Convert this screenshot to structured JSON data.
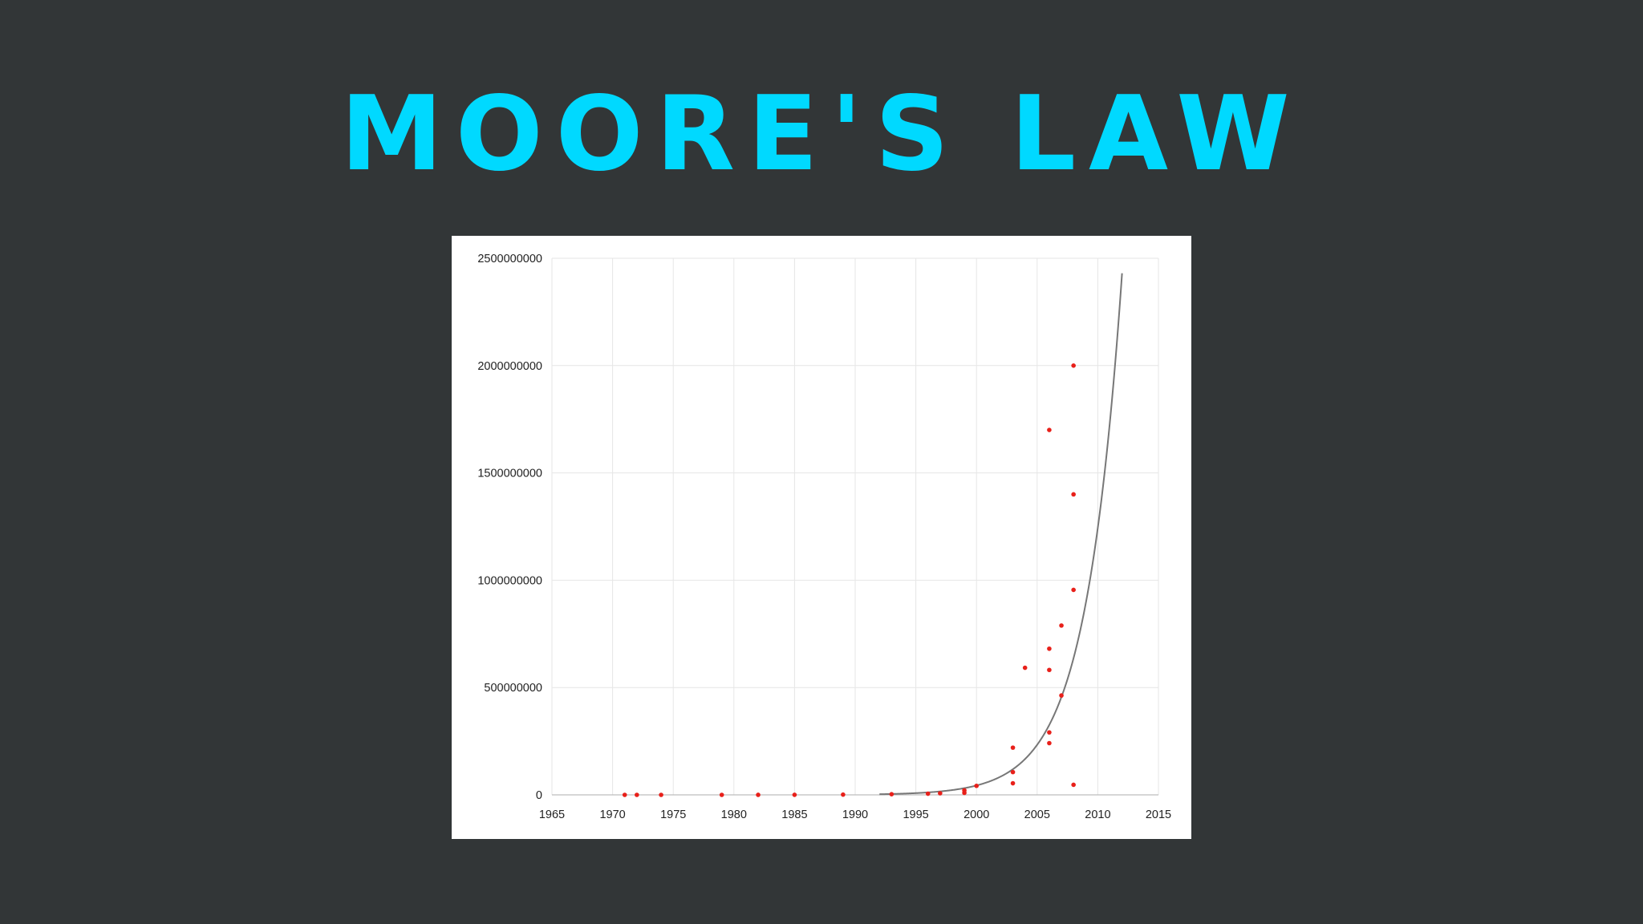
{
  "title": "MOORE'S LAW",
  "colors": {
    "background": "#323637",
    "title": "#00d9ff",
    "point": "#e8201a",
    "trend_line": "#777777",
    "grid": "#e6e6e6"
  },
  "chart_data": {
    "type": "scatter",
    "title": "",
    "xlabel": "",
    "ylabel": "",
    "xlim": [
      1965,
      2015
    ],
    "ylim": [
      0,
      2500000000
    ],
    "grid": true,
    "legend": "none",
    "x_ticks": [
      {
        "value": 1965,
        "label": "1965"
      },
      {
        "value": 1970,
        "label": "1970"
      },
      {
        "value": 1975,
        "label": "1975"
      },
      {
        "value": 1980,
        "label": "1980"
      },
      {
        "value": 1985,
        "label": "1985"
      },
      {
        "value": 1990,
        "label": "1990"
      },
      {
        "value": 1995,
        "label": "1995"
      },
      {
        "value": 2000,
        "label": "2000"
      },
      {
        "value": 2005,
        "label": "2005"
      },
      {
        "value": 2010,
        "label": "2010"
      },
      {
        "value": 2015,
        "label": "2015"
      }
    ],
    "y_ticks": [
      {
        "value": 0,
        "label": "0"
      },
      {
        "value": 500000000,
        "label": "500000000"
      },
      {
        "value": 1000000000,
        "label": "1000000000"
      },
      {
        "value": 1500000000,
        "label": "1500000000"
      },
      {
        "value": 2000000000,
        "label": "2000000000"
      },
      {
        "value": 2500000000,
        "label": "2500000000"
      }
    ],
    "series": [
      {
        "points": [
          [
            1971,
            2300
          ],
          [
            1972,
            3500
          ],
          [
            1974,
            4500
          ],
          [
            1979,
            29000
          ],
          [
            1982,
            134000
          ],
          [
            1985,
            275000
          ],
          [
            1989,
            1200000
          ],
          [
            1993,
            3100000
          ],
          [
            1996,
            5500000
          ],
          [
            1997,
            7500000
          ],
          [
            1999,
            9500000
          ],
          [
            1999,
            21000000
          ],
          [
            2000,
            42000000
          ],
          [
            2003,
            54000000
          ],
          [
            2003,
            106000000
          ],
          [
            2003,
            220000000
          ],
          [
            2004,
            592000000
          ],
          [
            2006,
            241000000
          ],
          [
            2006,
            291000000
          ],
          [
            2006,
            582000000
          ],
          [
            2006,
            681000000
          ],
          [
            2006,
            1700000000
          ],
          [
            2007,
            463000000
          ],
          [
            2007,
            789000000
          ],
          [
            2008,
            47000000
          ],
          [
            2008,
            955000000
          ],
          [
            2008,
            1400000000
          ],
          [
            2008,
            2000000000
          ]
        ]
      }
    ],
    "trend_line": {
      "type": "exponential",
      "base_x": 1992,
      "base_y": 3000000,
      "doubling_years": 2.07,
      "x_start": 1992,
      "x_end": 2012
    }
  }
}
